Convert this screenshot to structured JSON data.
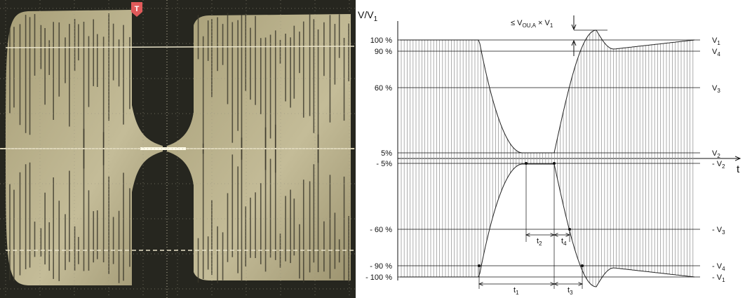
{
  "photo": {
    "trigger_marker": "T"
  },
  "diagram": {
    "axis_label": {
      "text": "V/V",
      "sub": "1"
    },
    "time_label": "t",
    "overshoot_label": {
      "part1": "≤ V",
      "sub1": "OU,A",
      "part2": " × V",
      "sub2": "1"
    },
    "level_labels": [
      "100 %",
      "90 %",
      "60 %",
      "5%",
      "- 5%",
      "- 60 %",
      "- 90 %",
      "- 100 %"
    ],
    "level_names": [
      {
        "text": "V",
        "sub": "1"
      },
      {
        "text": "V",
        "sub": "4"
      },
      {
        "text": "V",
        "sub": "3"
      },
      {
        "text": "V",
        "sub": "2"
      },
      {
        "text": "- V",
        "sub": "2"
      },
      {
        "text": "- V",
        "sub": "3"
      },
      {
        "text": "- V",
        "sub": "4"
      },
      {
        "text": "- V",
        "sub": "1"
      }
    ],
    "intervals": [
      {
        "text": "t",
        "sub": "1"
      },
      {
        "text": "t",
        "sub": "2"
      },
      {
        "text": "t",
        "sub": "3"
      },
      {
        "text": "t",
        "sub": "4"
      }
    ]
  }
}
